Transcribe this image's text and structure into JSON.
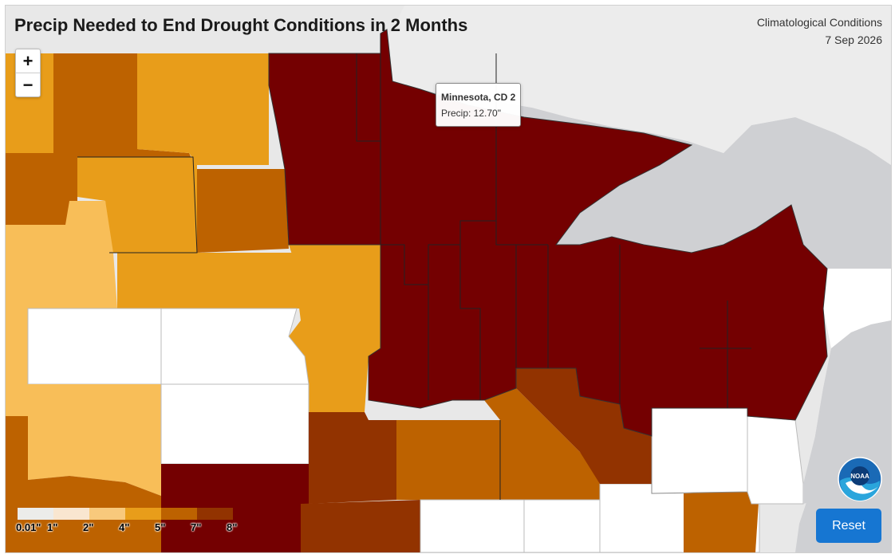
{
  "title": "Precip Needed to End Drought Conditions in 2 Months",
  "subtitle": "Climatological Conditions",
  "date": "7 Sep 2026",
  "zoom": {
    "in_label": "+",
    "out_label": "−"
  },
  "tooltip": {
    "title": "Minnesota, CD 2",
    "value": "Precip: 12.70\""
  },
  "legend": {
    "labels": [
      "0.01\"",
      "1\"",
      "2\"",
      "4\"",
      "5\"",
      "7\"",
      "8\""
    ],
    "colors": [
      "#f0eeee",
      "#f9e6d0",
      "#f8c97c",
      "#e89d1a",
      "#bd6200",
      "#923300",
      "#740001"
    ]
  },
  "reset_label": "Reset",
  "colors": {
    "background_land": "#e8e8e8",
    "water": "#cfd0d3",
    "none": "#ffffff",
    "c1": "#f8be58",
    "c2": "#e89d1a",
    "c3": "#bd6200",
    "c4": "#923300",
    "c5": "#740001",
    "accent": "#1676d2"
  }
}
